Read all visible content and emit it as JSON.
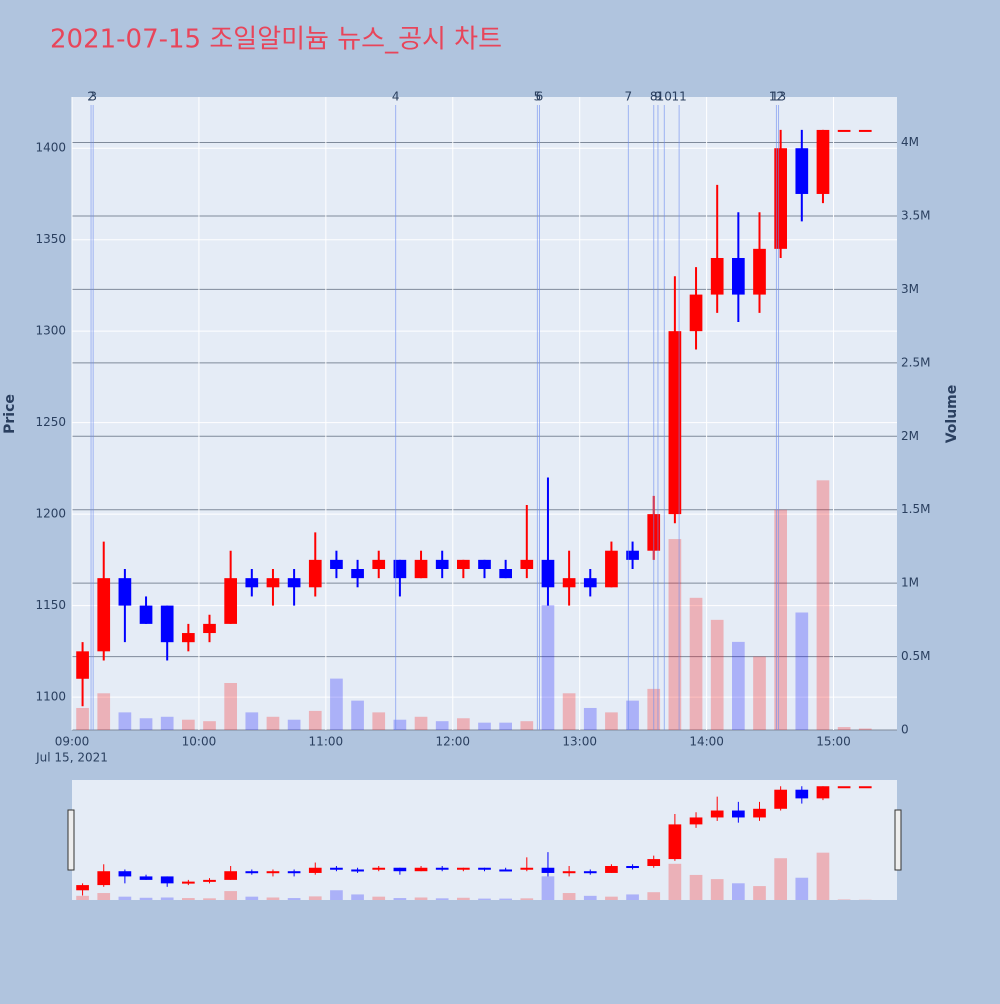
{
  "chart_data": {
    "type": "candlestick",
    "title": "2021-07-15 조일알미늄 뉴스_공시 차트",
    "y_label": "Price",
    "y2_label": "Volume",
    "date_label": "Jul 15, 2021",
    "increasing_color": "#ff0000",
    "decreasing_color": "#0000ff",
    "x": [
      "09:00",
      "09:10",
      "09:20",
      "09:30",
      "09:40",
      "09:50",
      "10:00",
      "10:10",
      "10:20",
      "10:30",
      "10:40",
      "10:50",
      "11:00",
      "11:10",
      "11:20",
      "11:30",
      "11:40",
      "11:50",
      "12:00",
      "12:10",
      "12:20",
      "12:30",
      "12:40",
      "12:50",
      "13:00",
      "13:10",
      "13:20",
      "13:30",
      "13:40",
      "13:50",
      "14:00",
      "14:10",
      "14:20",
      "14:30",
      "14:40",
      "14:50",
      "15:00",
      "15:10"
    ],
    "open": [
      1110,
      1125,
      1165,
      1150,
      1150,
      1130,
      1135,
      1140,
      1165,
      1160,
      1165,
      1160,
      1175,
      1170,
      1170,
      1175,
      1165,
      1175,
      1170,
      1175,
      1170,
      1170,
      1175,
      1160,
      1165,
      1160,
      1180,
      1180,
      1200,
      1300,
      1320,
      1340,
      1320,
      1345,
      1400,
      1375,
      1410,
      1410
    ],
    "high": [
      1130,
      1185,
      1170,
      1155,
      1150,
      1140,
      1145,
      1180,
      1170,
      1170,
      1170,
      1190,
      1180,
      1175,
      1180,
      1175,
      1180,
      1180,
      1175,
      1175,
      1175,
      1205,
      1220,
      1180,
      1170,
      1185,
      1185,
      1210,
      1330,
      1335,
      1380,
      1365,
      1365,
      1410,
      1410,
      1410,
      1410,
      1410
    ],
    "low": [
      1095,
      1120,
      1130,
      1140,
      1120,
      1125,
      1130,
      1140,
      1155,
      1150,
      1150,
      1155,
      1165,
      1160,
      1165,
      1155,
      1165,
      1165,
      1165,
      1165,
      1165,
      1165,
      1150,
      1150,
      1155,
      1160,
      1170,
      1175,
      1195,
      1290,
      1310,
      1305,
      1310,
      1340,
      1360,
      1370,
      1410,
      1410
    ],
    "close": [
      1125,
      1165,
      1150,
      1140,
      1130,
      1135,
      1140,
      1165,
      1160,
      1165,
      1160,
      1175,
      1170,
      1165,
      1175,
      1165,
      1175,
      1170,
      1175,
      1170,
      1165,
      1175,
      1160,
      1165,
      1160,
      1180,
      1175,
      1200,
      1300,
      1320,
      1340,
      1320,
      1345,
      1400,
      1375,
      1410,
      1410,
      1410
    ],
    "volume": [
      150000,
      250000,
      120000,
      80000,
      90000,
      70000,
      60000,
      320000,
      120000,
      90000,
      70000,
      130000,
      350000,
      200000,
      120000,
      70000,
      90000,
      60000,
      80000,
      50000,
      50000,
      60000,
      850000,
      250000,
      150000,
      120000,
      200000,
      280000,
      1300000,
      900000,
      750000,
      600000,
      500000,
      1500000,
      800000,
      1700000,
      20000,
      10000
    ],
    "ylim": [
      1082,
      1428
    ],
    "yticks": [
      1100,
      1150,
      1200,
      1250,
      1300,
      1350,
      1400
    ],
    "y2lim": [
      0,
      4310000
    ],
    "y2ticks": [
      {
        "value": 0,
        "label": "0"
      },
      {
        "value": 500000,
        "label": "0.5M"
      },
      {
        "value": 1000000,
        "label": "1M"
      },
      {
        "value": 1500000,
        "label": "1.5M"
      },
      {
        "value": 2000000,
        "label": "2M"
      },
      {
        "value": 2500000,
        "label": "2.5M"
      },
      {
        "value": 3000000,
        "label": "3M"
      },
      {
        "value": 3500000,
        "label": "3.5M"
      },
      {
        "value": 4000000,
        "label": "4M"
      }
    ],
    "xlim": [
      "09:00",
      "15:30"
    ],
    "xticks": [
      "09:00",
      "10:00",
      "11:00",
      "12:00",
      "13:00",
      "14:00",
      "15:00"
    ],
    "news": [
      {
        "label": "2",
        "x": "09:09"
      },
      {
        "label": "3",
        "x": "09:10"
      },
      {
        "label": "4",
        "x": "11:33"
      },
      {
        "label": "5",
        "x": "12:40"
      },
      {
        "label": "6",
        "x": "12:41"
      },
      {
        "label": "7",
        "x": "13:23"
      },
      {
        "label": "8",
        "x": "13:35"
      },
      {
        "label": "9",
        "x": "13:37"
      },
      {
        "label": "10",
        "x": "13:40"
      },
      {
        "label": "11",
        "x": "13:47"
      },
      {
        "label": "12",
        "x": "14:33"
      },
      {
        "label": "13",
        "x": "14:34"
      }
    ]
  }
}
